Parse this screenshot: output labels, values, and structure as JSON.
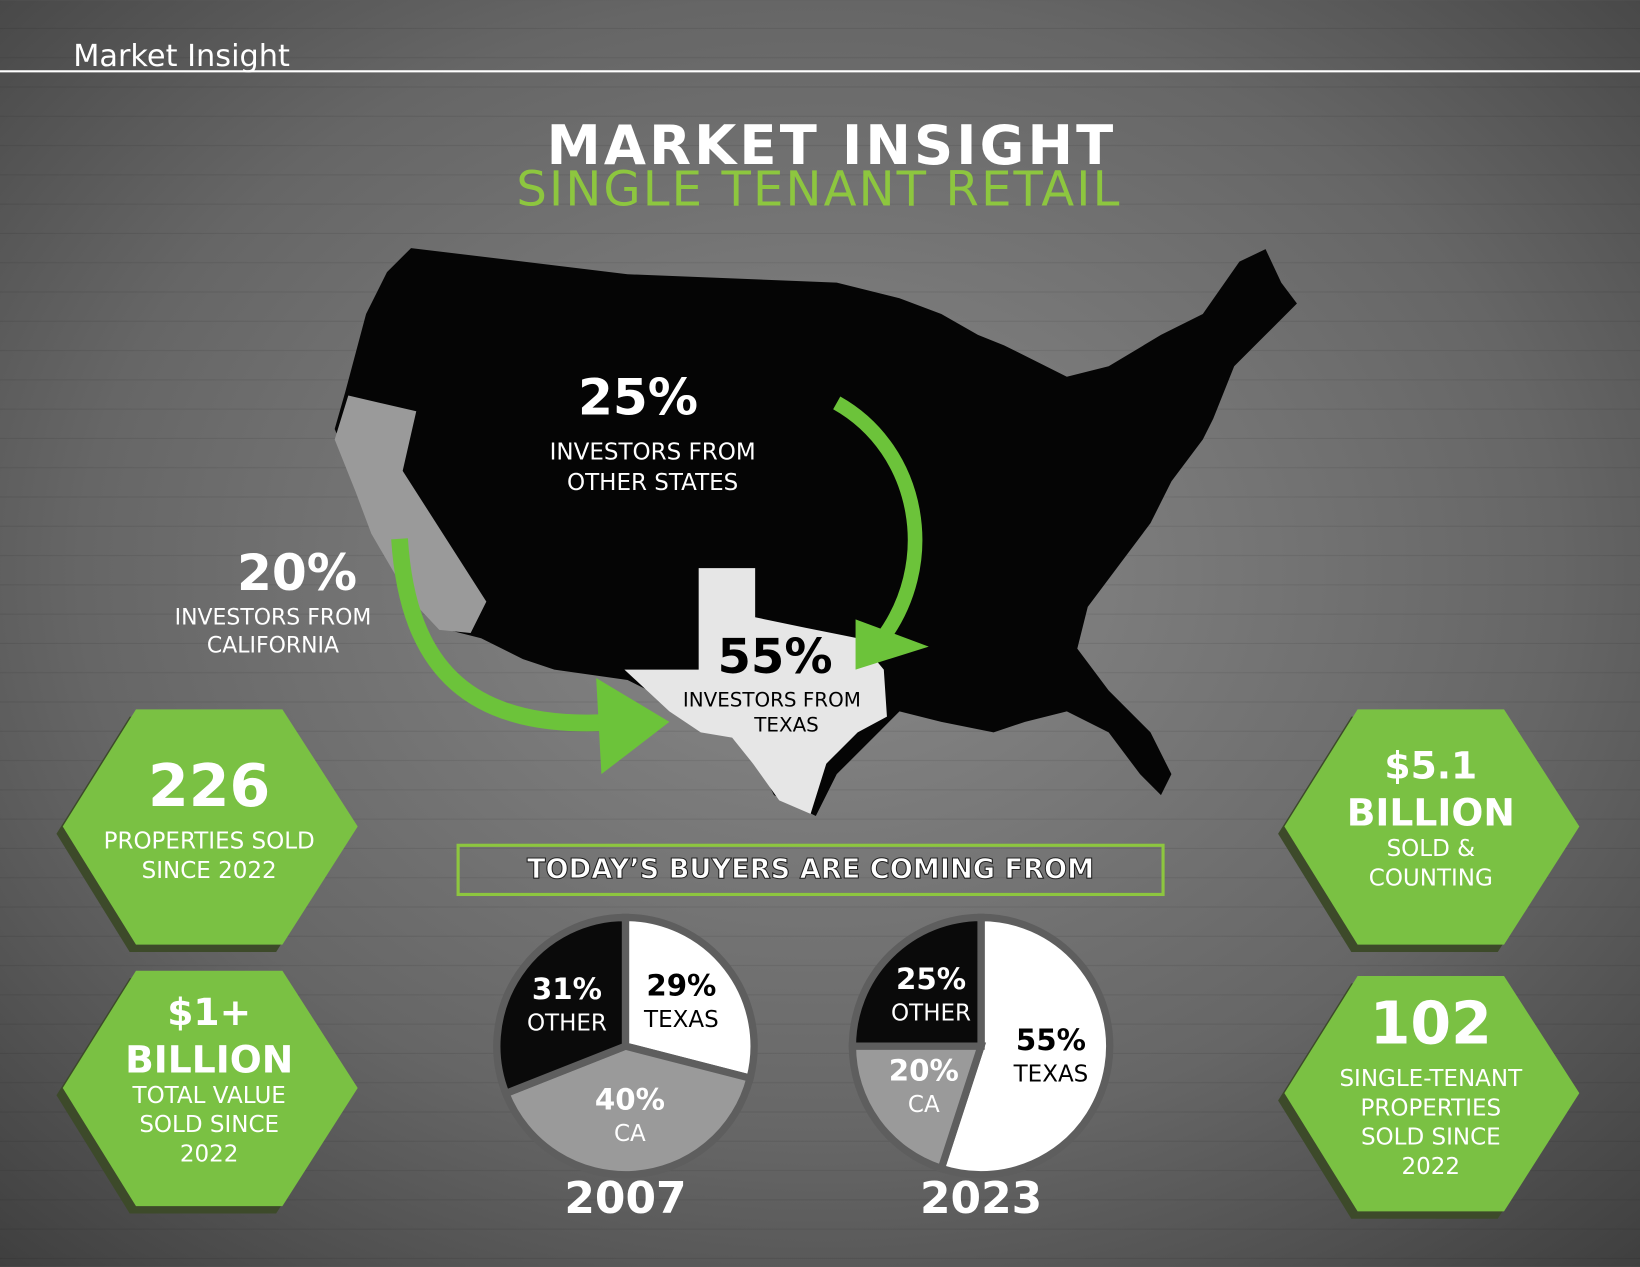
{
  "header": {
    "title": "Market Insight"
  },
  "title": "MARKET INSIGHT",
  "subtitle": "SINGLE TENANT RETAIL",
  "map_stats": [
    {
      "stat": "25%",
      "lines": [
        "INVESTORS FROM",
        "OTHER STATES"
      ]
    },
    {
      "stat": "20%",
      "lines": [
        "INVESTORS FROM",
        "CALIFORNIA"
      ]
    },
    {
      "stat": "55%",
      "lines": [
        "INVESTORS FROM",
        "TEXAS"
      ]
    }
  ],
  "hexagons": [
    {
      "stat_lines": [
        "226"
      ],
      "lines": [
        "PROPERTIES SOLD",
        "SINCE 2022"
      ]
    },
    {
      "stat_lines": [
        "$1+",
        "BILLION"
      ],
      "lines": [
        "TOTAL VALUE",
        "SOLD SINCE",
        "2022"
      ]
    },
    {
      "stat_lines": [
        "$5.1",
        "BILLION"
      ],
      "lines": [
        "SOLD &",
        "COUNTING"
      ]
    },
    {
      "stat_lines": [
        "102"
      ],
      "lines": [
        "SINGLE-TENANT",
        "PROPERTIES",
        "SOLD SINCE",
        "2022"
      ]
    }
  ],
  "buyers_heading": "TODAY’S BUYERS ARE COMING FROM",
  "chart_data": [
    {
      "type": "pie",
      "title": "2007",
      "categories": [
        "TEXAS",
        "CA",
        "OTHER"
      ],
      "values": [
        29,
        40,
        31
      ],
      "value_labels": [
        "29%",
        "40%",
        "31%"
      ],
      "colors": [
        "#ffffff",
        "#9a9a9a",
        "#0a0a0a"
      ]
    },
    {
      "type": "pie",
      "title": "2023",
      "categories": [
        "TEXAS",
        "CA",
        "OTHER"
      ],
      "values": [
        55,
        20,
        25
      ],
      "value_labels": [
        "55%",
        "20%",
        "25%"
      ],
      "colors": [
        "#ffffff",
        "#9a9a9a",
        "#0a0a0a"
      ]
    }
  ]
}
